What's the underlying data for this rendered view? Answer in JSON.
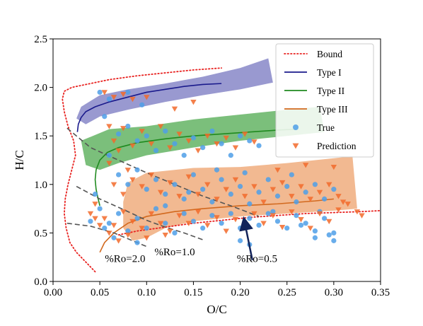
{
  "chart_data": {
    "type": "scatter",
    "xlabel": "O/C",
    "ylabel": "H/C",
    "xlim": [
      0.0,
      0.35
    ],
    "ylim": [
      0.0,
      2.5
    ],
    "x_ticks": [
      "0.00",
      "0.05",
      "0.10",
      "0.15",
      "0.20",
      "0.25",
      "0.30",
      "0.35"
    ],
    "y_ticks": [
      "0.0",
      "0.5",
      "1.0",
      "1.5",
      "2.0",
      "2.5"
    ],
    "grid": false,
    "legend_position": "top-right",
    "legend": [
      {
        "label": "Bound",
        "kind": "dotted-line",
        "color": "#e8211f"
      },
      {
        "label": "Type I",
        "kind": "line",
        "color": "#1a1a8c"
      },
      {
        "label": "Type II",
        "kind": "line",
        "color": "#1f8a1f"
      },
      {
        "label": "Type III",
        "kind": "line",
        "color": "#d2691e"
      },
      {
        "label": "True",
        "kind": "circle",
        "color": "#4f9fe8"
      },
      {
        "label": "Prediction",
        "kind": "triangle",
        "color": "#f26a2a"
      }
    ],
    "bands": [
      {
        "name": "Type I",
        "color": "#7f7fc4",
        "polygon": [
          [
            0.025,
            1.68
          ],
          [
            0.03,
            1.8
          ],
          [
            0.05,
            1.92
          ],
          [
            0.08,
            1.98
          ],
          [
            0.12,
            2.04
          ],
          [
            0.16,
            2.11
          ],
          [
            0.2,
            2.2
          ],
          [
            0.23,
            2.3
          ],
          [
            0.235,
            2.05
          ],
          [
            0.2,
            1.98
          ],
          [
            0.16,
            1.92
          ],
          [
            0.12,
            1.85
          ],
          [
            0.08,
            1.77
          ],
          [
            0.05,
            1.7
          ],
          [
            0.035,
            1.62
          ]
        ]
      },
      {
        "name": "Type II",
        "color": "#5aaf5a",
        "polygon": [
          [
            0.03,
            1.45
          ],
          [
            0.06,
            1.57
          ],
          [
            0.1,
            1.6
          ],
          [
            0.15,
            1.67
          ],
          [
            0.2,
            1.72
          ],
          [
            0.25,
            1.77
          ],
          [
            0.285,
            1.8
          ],
          [
            0.29,
            1.54
          ],
          [
            0.25,
            1.5
          ],
          [
            0.2,
            1.45
          ],
          [
            0.15,
            1.38
          ],
          [
            0.1,
            1.3
          ],
          [
            0.07,
            1.22
          ],
          [
            0.05,
            1.15
          ],
          [
            0.035,
            1.2
          ]
        ]
      },
      {
        "name": "Type III",
        "color": "#efa876",
        "polygon": [
          [
            0.075,
            0.82
          ],
          [
            0.08,
            1.02
          ],
          [
            0.1,
            1.12
          ],
          [
            0.15,
            1.17
          ],
          [
            0.2,
            1.18
          ],
          [
            0.25,
            1.22
          ],
          [
            0.3,
            1.27
          ],
          [
            0.32,
            1.29
          ],
          [
            0.325,
            0.75
          ],
          [
            0.3,
            0.73
          ],
          [
            0.25,
            0.7
          ],
          [
            0.2,
            0.67
          ],
          [
            0.15,
            0.62
          ],
          [
            0.12,
            0.55
          ],
          [
            0.1,
            0.45
          ],
          [
            0.085,
            0.42
          ],
          [
            0.075,
            0.55
          ]
        ]
      }
    ],
    "series": [
      {
        "name": "Bound",
        "style": "dotted",
        "color": "#e8211f",
        "points": [
          [
            0.045,
            0.1
          ],
          [
            0.035,
            0.2
          ],
          [
            0.025,
            0.3
          ],
          [
            0.018,
            0.4
          ],
          [
            0.014,
            0.55
          ],
          [
            0.012,
            0.7
          ],
          [
            0.013,
            0.85
          ],
          [
            0.016,
            1.0
          ],
          [
            0.02,
            1.15
          ],
          [
            0.024,
            1.3
          ],
          [
            0.022,
            1.45
          ],
          [
            0.016,
            1.6
          ],
          [
            0.012,
            1.75
          ],
          [
            0.01,
            1.88
          ],
          [
            0.012,
            1.96
          ],
          [
            0.02,
            2.0
          ],
          [
            0.035,
            2.03
          ],
          [
            0.06,
            2.08
          ],
          [
            0.09,
            2.12
          ],
          [
            0.12,
            2.15
          ],
          [
            0.15,
            2.18
          ],
          [
            0.18,
            2.2
          ]
        ]
      },
      {
        "name": "Bound-lower",
        "style": "dotted",
        "color": "#e8211f",
        "points": [
          [
            0.07,
            0.48
          ],
          [
            0.09,
            0.52
          ],
          [
            0.12,
            0.56
          ],
          [
            0.15,
            0.6
          ],
          [
            0.18,
            0.63
          ],
          [
            0.21,
            0.66
          ],
          [
            0.24,
            0.68
          ],
          [
            0.27,
            0.7
          ],
          [
            0.3,
            0.71
          ],
          [
            0.33,
            0.72
          ],
          [
            0.35,
            0.73
          ]
        ]
      },
      {
        "name": "Type I",
        "style": "solid",
        "color": "#1a1a8c",
        "points": [
          [
            0.026,
            1.54
          ],
          [
            0.027,
            1.62
          ],
          [
            0.03,
            1.69
          ],
          [
            0.035,
            1.75
          ],
          [
            0.045,
            1.8
          ],
          [
            0.06,
            1.85
          ],
          [
            0.08,
            1.9
          ],
          [
            0.1,
            1.95
          ],
          [
            0.12,
            1.98
          ],
          [
            0.14,
            2.01
          ],
          [
            0.16,
            2.03
          ],
          [
            0.18,
            2.04
          ]
        ]
      },
      {
        "name": "Type II",
        "style": "solid",
        "color": "#1f8a1f",
        "points": [
          [
            0.05,
            0.78
          ],
          [
            0.048,
            0.86
          ],
          [
            0.046,
            0.95
          ],
          [
            0.045,
            1.05
          ],
          [
            0.046,
            1.15
          ],
          [
            0.05,
            1.25
          ],
          [
            0.058,
            1.33
          ],
          [
            0.07,
            1.38
          ],
          [
            0.09,
            1.43
          ],
          [
            0.12,
            1.47
          ],
          [
            0.15,
            1.5
          ],
          [
            0.18,
            1.52
          ],
          [
            0.21,
            1.54
          ],
          [
            0.24,
            1.56
          ],
          [
            0.262,
            1.57
          ]
        ]
      },
      {
        "name": "Type III",
        "style": "solid",
        "color": "#d2691e",
        "points": [
          [
            0.05,
            0.3
          ],
          [
            0.055,
            0.4
          ],
          [
            0.065,
            0.5
          ],
          [
            0.08,
            0.6
          ],
          [
            0.1,
            0.67
          ],
          [
            0.13,
            0.72
          ],
          [
            0.16,
            0.75
          ],
          [
            0.2,
            0.78
          ],
          [
            0.24,
            0.8
          ],
          [
            0.28,
            0.83
          ],
          [
            0.3,
            0.85
          ]
        ]
      },
      {
        "name": "Ro=2.0",
        "style": "dashed",
        "color": "#555555",
        "points": [
          [
            0.015,
            0.6
          ],
          [
            0.04,
            0.57
          ],
          [
            0.065,
            0.5
          ],
          [
            0.085,
            0.42
          ],
          [
            0.1,
            0.36
          ]
        ]
      },
      {
        "name": "Ro=1.0",
        "style": "dashed",
        "color": "#555555",
        "points": [
          [
            0.025,
            0.98
          ],
          [
            0.05,
            0.85
          ],
          [
            0.08,
            0.72
          ],
          [
            0.1,
            0.63
          ],
          [
            0.12,
            0.56
          ],
          [
            0.14,
            0.5
          ],
          [
            0.16,
            0.43
          ]
        ]
      },
      {
        "name": "Ro=0.5",
        "style": "dashed",
        "color": "#555555",
        "points": [
          [
            0.015,
            1.58
          ],
          [
            0.04,
            1.38
          ],
          [
            0.07,
            1.25
          ],
          [
            0.1,
            1.12
          ],
          [
            0.13,
            1.0
          ],
          [
            0.16,
            0.88
          ],
          [
            0.19,
            0.78
          ],
          [
            0.22,
            0.67
          ]
        ]
      }
    ],
    "annotations": [
      {
        "text": "%Ro=2.0",
        "x": 0.077,
        "y": 0.2
      },
      {
        "text": "%Ro=1.0",
        "x": 0.13,
        "y": 0.27
      },
      {
        "text": "%Ro=0.5",
        "x": 0.218,
        "y": 0.2
      }
    ],
    "arrow": {
      "from": [
        0.213,
        0.22
      ],
      "to": [
        0.205,
        0.6
      ],
      "color": "#12235a"
    },
    "true_points": [
      [
        0.05,
        1.95
      ],
      [
        0.06,
        1.88
      ],
      [
        0.08,
        1.95
      ],
      [
        0.095,
        1.82
      ],
      [
        0.055,
        1.7
      ],
      [
        0.07,
        1.52
      ],
      [
        0.08,
        1.6
      ],
      [
        0.09,
        1.45
      ],
      [
        0.1,
        1.5
      ],
      [
        0.11,
        1.35
      ],
      [
        0.12,
        1.55
      ],
      [
        0.13,
        1.42
      ],
      [
        0.14,
        1.3
      ],
      [
        0.15,
        1.48
      ],
      [
        0.16,
        1.38
      ],
      [
        0.17,
        1.55
      ],
      [
        0.18,
        1.42
      ],
      [
        0.19,
        1.3
      ],
      [
        0.2,
        1.5
      ],
      [
        0.21,
        1.45
      ],
      [
        0.22,
        1.4
      ],
      [
        0.06,
        1.3
      ],
      [
        0.07,
        1.1
      ],
      [
        0.08,
        1.0
      ],
      [
        0.09,
        1.15
      ],
      [
        0.1,
        0.95
      ],
      [
        0.11,
        1.05
      ],
      [
        0.12,
        0.9
      ],
      [
        0.13,
        1.0
      ],
      [
        0.14,
        0.85
      ],
      [
        0.15,
        1.1
      ],
      [
        0.16,
        0.95
      ],
      [
        0.17,
        0.82
      ],
      [
        0.18,
        1.05
      ],
      [
        0.19,
        0.9
      ],
      [
        0.2,
        0.98
      ],
      [
        0.21,
        0.8
      ],
      [
        0.22,
        0.92
      ],
      [
        0.23,
        1.05
      ],
      [
        0.24,
        0.88
      ],
      [
        0.25,
        0.98
      ],
      [
        0.26,
        0.82
      ],
      [
        0.27,
        0.92
      ],
      [
        0.28,
        1.0
      ],
      [
        0.29,
        0.85
      ],
      [
        0.3,
        0.95
      ],
      [
        0.06,
        0.6
      ],
      [
        0.07,
        0.7
      ],
      [
        0.08,
        0.52
      ],
      [
        0.09,
        0.65
      ],
      [
        0.1,
        0.55
      ],
      [
        0.11,
        0.75
      ],
      [
        0.12,
        0.6
      ],
      [
        0.13,
        0.5
      ],
      [
        0.14,
        0.7
      ],
      [
        0.15,
        0.62
      ],
      [
        0.16,
        0.55
      ],
      [
        0.17,
        0.68
      ],
      [
        0.18,
        0.6
      ],
      [
        0.19,
        0.7
      ],
      [
        0.2,
        0.55
      ],
      [
        0.21,
        0.65
      ],
      [
        0.22,
        0.58
      ],
      [
        0.23,
        0.7
      ],
      [
        0.24,
        0.62
      ],
      [
        0.25,
        0.55
      ],
      [
        0.26,
        0.68
      ],
      [
        0.27,
        0.6
      ],
      [
        0.28,
        0.52
      ],
      [
        0.29,
        0.65
      ],
      [
        0.3,
        0.5
      ],
      [
        0.2,
        0.42
      ],
      [
        0.21,
        0.38
      ],
      [
        0.28,
        0.45
      ],
      [
        0.3,
        0.42
      ],
      [
        0.05,
        0.75
      ],
      [
        0.055,
        0.55
      ],
      [
        0.04,
        0.62
      ],
      [
        0.045,
        0.9
      ],
      [
        0.065,
        0.45
      ],
      [
        0.09,
        0.4
      ],
      [
        0.12,
        0.78
      ],
      [
        0.145,
        0.92
      ],
      [
        0.175,
        1.15
      ],
      [
        0.205,
        1.12
      ],
      [
        0.235,
        0.72
      ],
      [
        0.255,
        1.1
      ],
      [
        0.265,
        0.58
      ],
      [
        0.285,
        0.72
      ],
      [
        0.295,
        0.48
      ]
    ],
    "prediction_points": [
      [
        0.055,
        1.95
      ],
      [
        0.065,
        1.9
      ],
      [
        0.075,
        1.93
      ],
      [
        0.085,
        1.88
      ],
      [
        0.1,
        1.9
      ],
      [
        0.06,
        1.6
      ],
      [
        0.065,
        1.45
      ],
      [
        0.075,
        1.58
      ],
      [
        0.085,
        1.4
      ],
      [
        0.095,
        1.55
      ],
      [
        0.105,
        1.42
      ],
      [
        0.115,
        1.6
      ],
      [
        0.125,
        1.38
      ],
      [
        0.135,
        1.52
      ],
      [
        0.145,
        1.45
      ],
      [
        0.155,
        1.35
      ],
      [
        0.165,
        1.5
      ],
      [
        0.175,
        1.42
      ],
      [
        0.185,
        1.48
      ],
      [
        0.195,
        1.38
      ],
      [
        0.205,
        1.52
      ],
      [
        0.215,
        1.44
      ],
      [
        0.06,
        1.22
      ],
      [
        0.07,
        1.35
      ],
      [
        0.08,
        1.15
      ],
      [
        0.065,
        1.0
      ],
      [
        0.075,
        0.9
      ],
      [
        0.085,
        1.05
      ],
      [
        0.095,
        0.98
      ],
      [
        0.105,
        1.1
      ],
      [
        0.115,
        0.92
      ],
      [
        0.125,
        1.02
      ],
      [
        0.135,
        0.88
      ],
      [
        0.145,
        1.08
      ],
      [
        0.155,
        0.9
      ],
      [
        0.165,
        1.0
      ],
      [
        0.175,
        0.85
      ],
      [
        0.185,
        0.95
      ],
      [
        0.195,
        1.05
      ],
      [
        0.205,
        0.88
      ],
      [
        0.215,
        0.98
      ],
      [
        0.225,
        0.82
      ],
      [
        0.235,
        0.95
      ],
      [
        0.245,
        1.02
      ],
      [
        0.255,
        0.88
      ],
      [
        0.265,
        0.98
      ],
      [
        0.275,
        0.85
      ],
      [
        0.285,
        0.92
      ],
      [
        0.295,
        1.0
      ],
      [
        0.305,
        0.88
      ],
      [
        0.315,
        0.8
      ],
      [
        0.325,
        0.72
      ],
      [
        0.055,
        0.65
      ],
      [
        0.065,
        0.58
      ],
      [
        0.075,
        0.72
      ],
      [
        0.085,
        0.62
      ],
      [
        0.095,
        0.55
      ],
      [
        0.105,
        0.7
      ],
      [
        0.115,
        0.6
      ],
      [
        0.125,
        0.52
      ],
      [
        0.135,
        0.68
      ],
      [
        0.145,
        0.6
      ],
      [
        0.155,
        0.72
      ],
      [
        0.165,
        0.58
      ],
      [
        0.175,
        0.66
      ],
      [
        0.185,
        0.52
      ],
      [
        0.195,
        0.64
      ],
      [
        0.205,
        0.56
      ],
      [
        0.215,
        0.7
      ],
      [
        0.225,
        0.6
      ],
      [
        0.235,
        0.68
      ],
      [
        0.245,
        0.56
      ],
      [
        0.255,
        0.72
      ],
      [
        0.265,
        0.64
      ],
      [
        0.275,
        0.55
      ],
      [
        0.285,
        0.7
      ],
      [
        0.295,
        0.62
      ],
      [
        0.305,
        0.74
      ],
      [
        0.04,
        0.7
      ],
      [
        0.045,
        0.8
      ],
      [
        0.05,
        0.58
      ],
      [
        0.045,
        0.65
      ],
      [
        0.06,
        0.5
      ],
      [
        0.07,
        0.42
      ],
      [
        0.08,
        0.48
      ],
      [
        0.1,
        0.45
      ],
      [
        0.12,
        0.48
      ],
      [
        0.24,
        1.15
      ],
      [
        0.27,
        1.2
      ],
      [
        0.3,
        1.18
      ],
      [
        0.33,
        0.68
      ],
      [
        0.31,
        0.82
      ],
      [
        0.13,
        1.78
      ],
      [
        0.15,
        1.85
      ]
    ]
  }
}
